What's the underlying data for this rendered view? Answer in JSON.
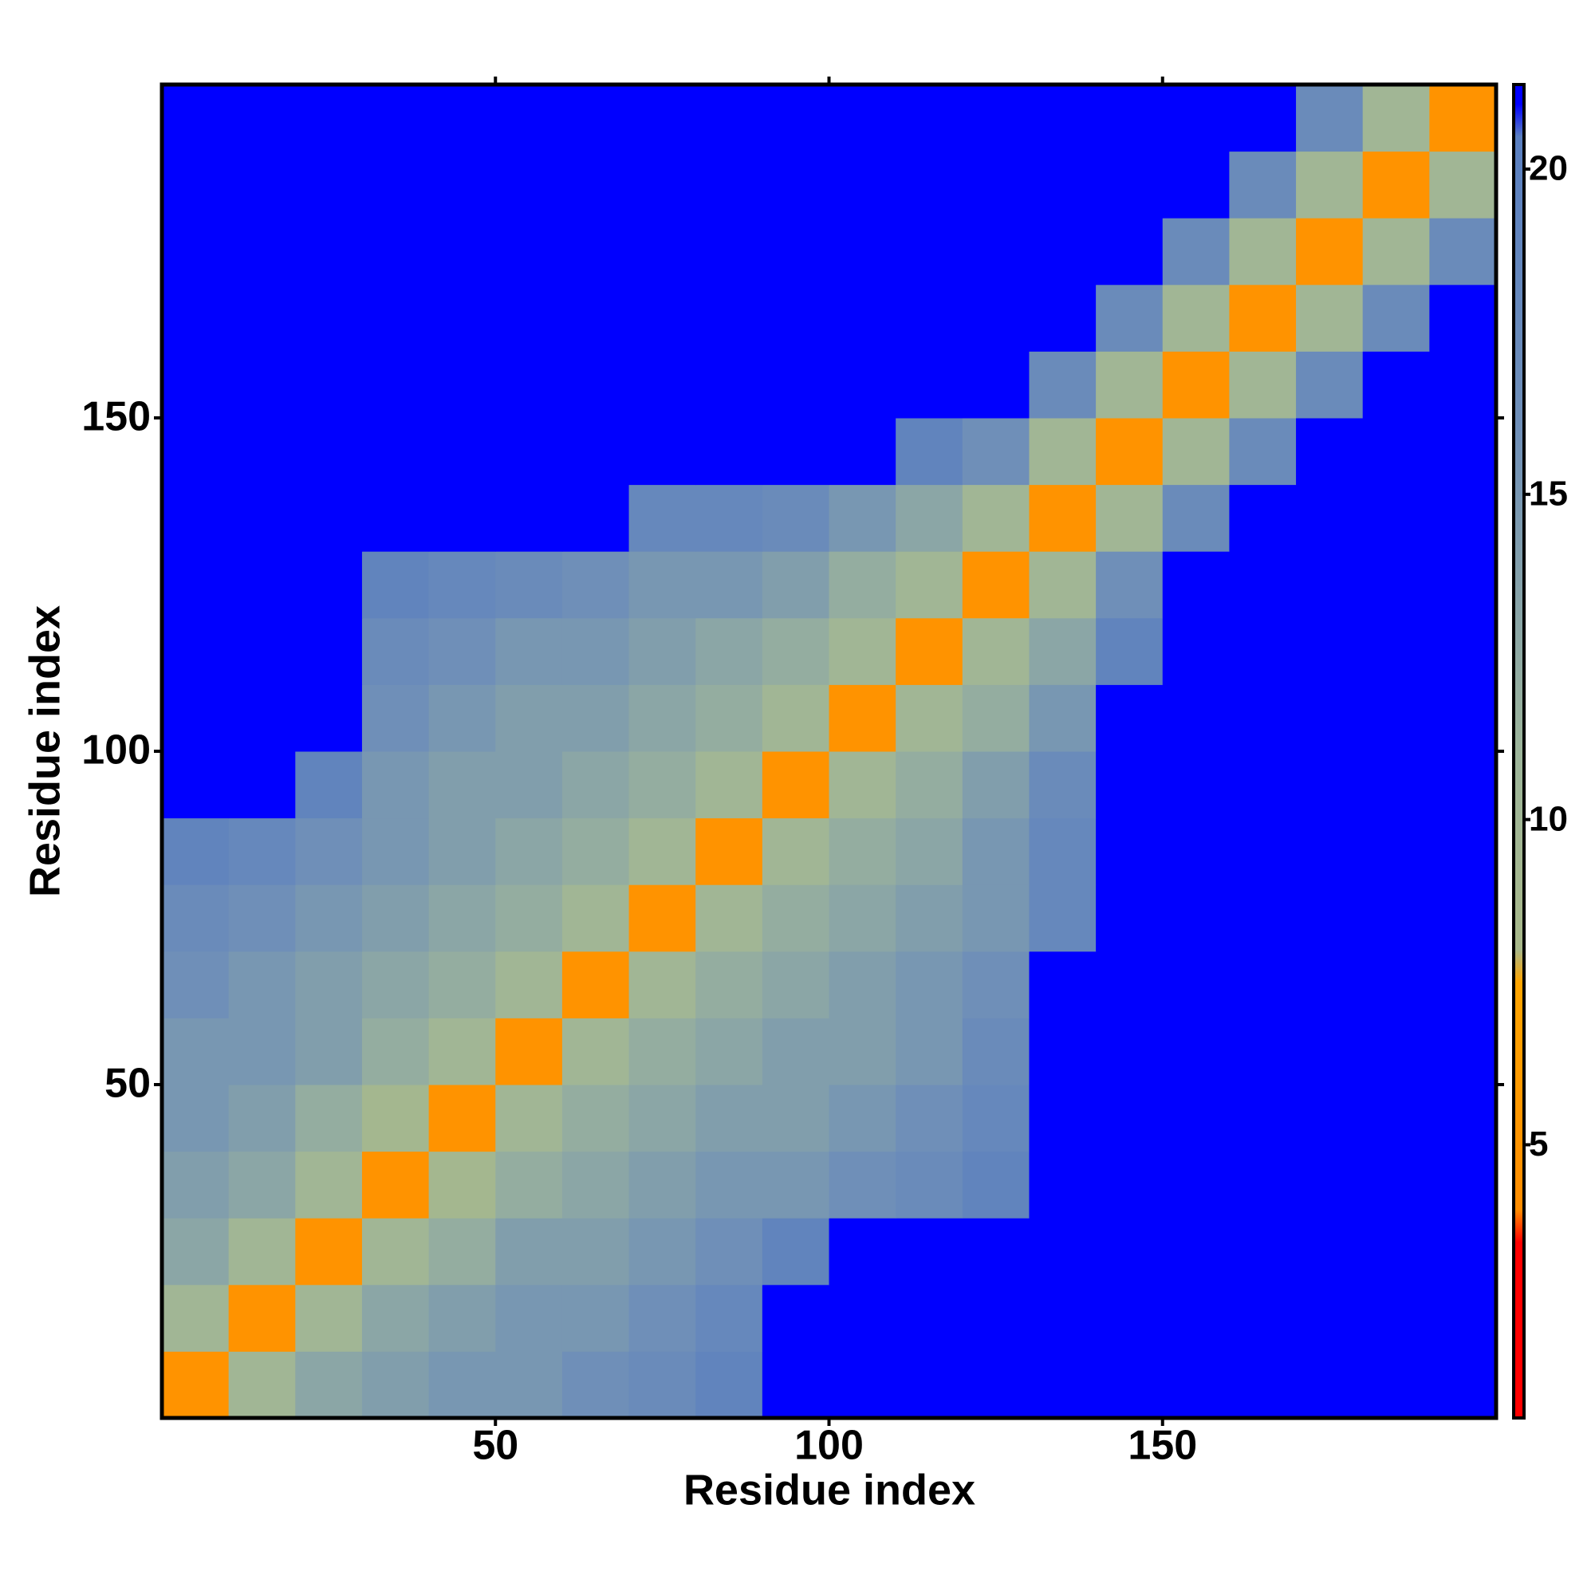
{
  "chart_data": {
    "type": "heatmap",
    "x_label": "Residue index",
    "y_label": "Residue index",
    "xbins": [
      0,
      10,
      20,
      30,
      40,
      50,
      60,
      70,
      80,
      90,
      100,
      110,
      120,
      130,
      140,
      150,
      160,
      170,
      180,
      190,
      200
    ],
    "ybins": [
      0,
      10,
      20,
      30,
      40,
      50,
      60,
      70,
      80,
      90,
      100,
      110,
      120,
      130,
      140,
      150,
      160,
      170,
      180,
      190,
      200
    ],
    "z": [
      [
        5,
        10,
        13,
        14,
        15,
        15,
        16,
        17,
        19,
        21,
        21,
        21,
        21,
        21,
        21,
        21,
        21,
        21,
        21,
        21
      ],
      [
        10,
        5,
        10,
        13,
        14,
        15,
        15,
        16,
        18,
        21,
        21,
        21,
        21,
        21,
        21,
        21,
        21,
        21,
        21,
        21
      ],
      [
        13,
        10,
        5,
        10,
        12,
        14,
        14,
        15,
        16,
        19,
        21,
        21,
        21,
        21,
        21,
        21,
        21,
        21,
        21,
        21
      ],
      [
        14,
        13,
        10,
        5,
        9,
        12,
        13,
        14,
        15,
        15,
        16,
        17,
        19,
        21,
        21,
        21,
        21,
        21,
        21,
        21
      ],
      [
        15,
        14,
        12,
        9,
        5,
        10,
        12,
        13,
        14,
        14,
        15,
        16,
        18,
        21,
        21,
        21,
        21,
        21,
        21,
        21
      ],
      [
        15,
        15,
        14,
        12,
        10,
        5,
        10,
        12,
        13,
        14,
        14,
        15,
        17,
        21,
        21,
        21,
        21,
        21,
        21,
        21
      ],
      [
        16,
        15,
        14,
        13,
        12,
        10,
        5,
        10,
        12,
        13,
        14,
        15,
        16,
        21,
        21,
        21,
        21,
        21,
        21,
        21
      ],
      [
        17,
        16,
        15,
        14,
        13,
        12,
        10,
        5,
        10,
        12,
        13,
        14,
        15,
        18,
        21,
        21,
        21,
        21,
        21,
        21
      ],
      [
        19,
        18,
        16,
        15,
        14,
        13,
        12,
        10,
        5,
        10,
        12,
        13,
        15,
        18,
        21,
        21,
        21,
        21,
        21,
        21
      ],
      [
        21,
        21,
        19,
        15,
        14,
        14,
        13,
        12,
        10,
        5,
        10,
        12,
        14,
        17,
        21,
        21,
        21,
        21,
        21,
        21
      ],
      [
        21,
        21,
        21,
        16,
        15,
        14,
        14,
        13,
        12,
        10,
        5,
        10,
        12,
        15,
        21,
        21,
        21,
        21,
        21,
        21
      ],
      [
        21,
        21,
        21,
        17,
        16,
        15,
        15,
        14,
        13,
        12,
        10,
        5,
        10,
        13,
        19,
        21,
        21,
        21,
        21,
        21
      ],
      [
        21,
        21,
        21,
        19,
        18,
        17,
        16,
        15,
        15,
        14,
        12,
        10,
        5,
        10,
        16,
        21,
        21,
        21,
        21,
        21
      ],
      [
        21,
        21,
        21,
        21,
        21,
        21,
        21,
        18,
        18,
        17,
        15,
        13,
        10,
        5,
        10,
        17,
        21,
        21,
        21,
        21
      ],
      [
        21,
        21,
        21,
        21,
        21,
        21,
        21,
        21,
        21,
        21,
        21,
        19,
        16,
        10,
        5,
        10,
        17,
        21,
        21,
        21
      ],
      [
        21,
        21,
        21,
        21,
        21,
        21,
        21,
        21,
        21,
        21,
        21,
        21,
        21,
        17,
        10,
        5,
        10,
        17,
        21,
        21
      ],
      [
        21,
        21,
        21,
        21,
        21,
        21,
        21,
        21,
        21,
        21,
        21,
        21,
        21,
        21,
        17,
        10,
        5,
        10,
        17,
        21
      ],
      [
        21,
        21,
        21,
        21,
        21,
        21,
        21,
        21,
        21,
        21,
        21,
        21,
        21,
        21,
        21,
        17,
        10,
        5,
        10,
        17
      ],
      [
        21,
        21,
        21,
        21,
        21,
        21,
        21,
        21,
        21,
        21,
        21,
        21,
        21,
        21,
        21,
        21,
        17,
        10,
        5,
        10
      ],
      [
        21,
        21,
        21,
        21,
        21,
        21,
        21,
        21,
        21,
        21,
        21,
        21,
        21,
        21,
        21,
        21,
        21,
        17,
        10,
        5
      ]
    ],
    "xlim": [
      0,
      200
    ],
    "ylim": [
      0,
      200
    ],
    "xticks": [
      50,
      100,
      150
    ],
    "yticks": [
      50,
      100,
      150
    ],
    "clim": [
      0.8,
      21.3
    ],
    "cticks": [
      5,
      10,
      15,
      20
    ],
    "colorscale": [
      [
        0.8,
        "#ff0000"
      ],
      [
        3.5,
        "#ff0000"
      ],
      [
        4,
        "#ff8c00"
      ],
      [
        7.5,
        "#ffa500"
      ],
      [
        8,
        "#a8b88a"
      ],
      [
        11,
        "#9db59a"
      ],
      [
        16,
        "#6f8fb8"
      ],
      [
        20.5,
        "#5a7fc0"
      ],
      [
        21,
        "#0000ff"
      ],
      [
        21.3,
        "#0000ff"
      ]
    ]
  }
}
